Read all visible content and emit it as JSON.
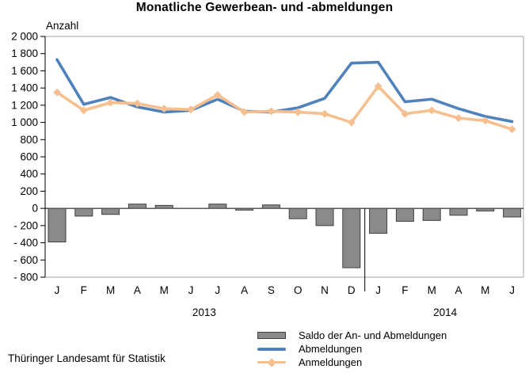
{
  "title": "Monatliche Gewerbean- und -abmeldungen",
  "footer": "Thüringer Landesamt für Statistik",
  "chart_data": {
    "type": "line+bar combo",
    "title": "Monatliche Gewerbean- und -abmeldungen",
    "ylabel": "Anzahl",
    "xlabel": "",
    "ylim": [
      -800,
      2000
    ],
    "ytick_step": 200,
    "ytick_labels": [
      "2 000",
      "1 800",
      "1 600",
      "1 400",
      "1 200",
      "1 000",
      "800",
      "600",
      "400",
      "200",
      "0",
      "- 200",
      "- 400",
      "- 600",
      "- 800"
    ],
    "grid": false,
    "legend_position": "bottom-right",
    "categories": [
      "J",
      "F",
      "M",
      "A",
      "M",
      "J",
      "J",
      "A",
      "S",
      "O",
      "N",
      "D",
      "J",
      "F",
      "M",
      "A",
      "M",
      "J"
    ],
    "year_groups": [
      {
        "label": "2013",
        "from": 0,
        "to": 11
      },
      {
        "label": "2014",
        "from": 12,
        "to": 17
      }
    ],
    "series": [
      {
        "name": "Saldo der An- und Abmeldungen",
        "type": "bar",
        "color": "#8a8a8a",
        "border_color": "#404040",
        "values": [
          -390,
          -90,
          -70,
          50,
          35,
          0,
          50,
          -20,
          40,
          -120,
          -200,
          -690,
          -290,
          -150,
          -140,
          -80,
          -30,
          -100
        ]
      },
      {
        "name": "Abmeldungen",
        "type": "line",
        "color": "#4f81bd",
        "marker": "none",
        "values": [
          1730,
          1210,
          1290,
          1180,
          1120,
          1140,
          1270,
          1130,
          1120,
          1170,
          1280,
          1690,
          1700,
          1240,
          1270,
          1160,
          1070,
          1010
        ]
      },
      {
        "name": "Anmeldungen",
        "type": "line",
        "color": "#f6bf90",
        "marker": "diamond",
        "values": [
          1350,
          1140,
          1230,
          1220,
          1160,
          1150,
          1320,
          1120,
          1130,
          1120,
          1100,
          1000,
          1420,
          1100,
          1140,
          1050,
          1020,
          920
        ]
      }
    ]
  }
}
